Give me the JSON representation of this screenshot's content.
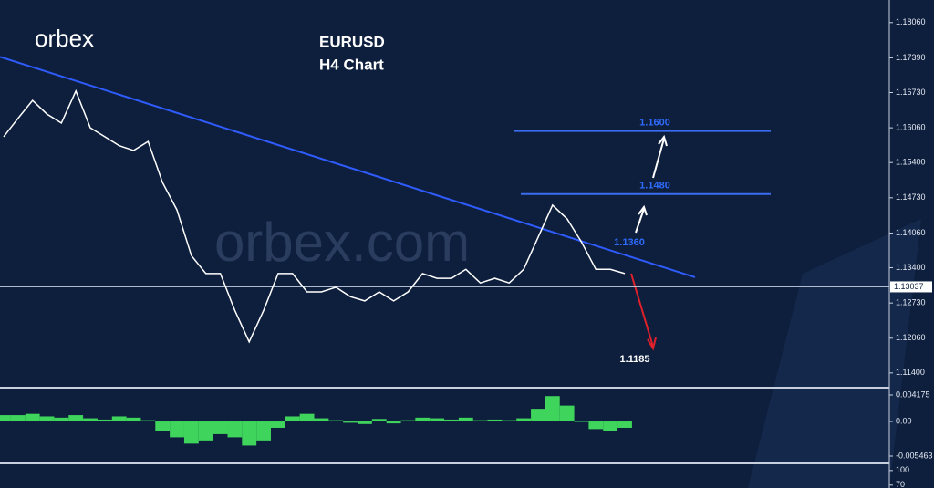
{
  "logo": "orbex",
  "watermark": "orbex.com",
  "chart_data": [
    {
      "type": "line",
      "title": "EURUSD",
      "subtitle": "H4 Chart",
      "color": "#ffffff",
      "values": [
        1.1589,
        1.1624,
        1.1658,
        1.1632,
        1.1615,
        1.1676,
        1.1606,
        1.1589,
        1.1572,
        1.1563,
        1.158,
        1.1502,
        1.145,
        1.1363,
        1.1329,
        1.1329,
        1.1259,
        1.1199,
        1.1259,
        1.1329,
        1.1329,
        1.1294,
        1.1294,
        1.1303,
        1.1285,
        1.1277,
        1.1294,
        1.1277,
        1.1294,
        1.1329,
        1.132,
        1.132,
        1.1337,
        1.1311,
        1.132,
        1.1311,
        1.1337,
        1.1398,
        1.1459,
        1.1433,
        1.1389,
        1.1337,
        1.1337,
        1.1329
      ],
      "ylim": [
        1.1112,
        1.1849
      ],
      "yticks": [
        {
          "value": 1.1806,
          "label": "1.18060"
        },
        {
          "value": 1.1739,
          "label": "1.17390"
        },
        {
          "value": 1.1673,
          "label": "1.16730"
        },
        {
          "value": 1.1606,
          "label": "1.16060"
        },
        {
          "value": 1.154,
          "label": "1.15400"
        },
        {
          "value": 1.1473,
          "label": "1.14730"
        },
        {
          "value": 1.1406,
          "label": "1.14060"
        },
        {
          "value": 1.134,
          "label": "1.13400"
        },
        {
          "value": 1.1273,
          "label": "1.12730"
        },
        {
          "value": 1.1206,
          "label": "1.12060"
        },
        {
          "value": 1.114,
          "label": "1.11400"
        }
      ],
      "last_price": 1.13037,
      "trendline": [
        1.1741,
        1.1322
      ],
      "trendline_color": "#2f5cff",
      "levels": [
        {
          "value": 1.16,
          "label": "1.1600"
        },
        {
          "value": 1.148,
          "label": "1.1480"
        }
      ],
      "level_color": "#3a6cf0",
      "targets": [
        {
          "value": 1.136,
          "label": "1.1360"
        },
        {
          "value": 1.1185,
          "label": "1.1185"
        }
      ]
    },
    {
      "type": "bar",
      "color": "#3fd45b",
      "values": [
        0.001,
        0.001,
        0.0012,
        0.0008,
        0.0006,
        0.001,
        0.0005,
        0.0003,
        0.0008,
        0.0006,
        0.0002,
        -0.0015,
        -0.0025,
        -0.0035,
        -0.003,
        -0.002,
        -0.0025,
        -0.0038,
        -0.003,
        -0.001,
        0.0008,
        0.0012,
        0.0005,
        0.0002,
        -0.0002,
        -0.0004,
        0.0004,
        -0.0003,
        0.0002,
        0.0006,
        0.0005,
        0.0003,
        0.0006,
        0.0002,
        0.0003,
        0.0002,
        0.0005,
        0.002,
        0.004,
        0.0025,
        0.0,
        -0.0012,
        -0.0015,
        -0.001
      ],
      "ylim": [
        -0.006614,
        0.005038
      ],
      "yticks": [
        0.004175,
        {
          "value": 0,
          "label": "0.00"
        },
        -0.005463
      ]
    },
    {
      "type": "indicator",
      "ylim": [
        64,
        111
      ],
      "yticks": [
        100,
        70
      ]
    }
  ]
}
